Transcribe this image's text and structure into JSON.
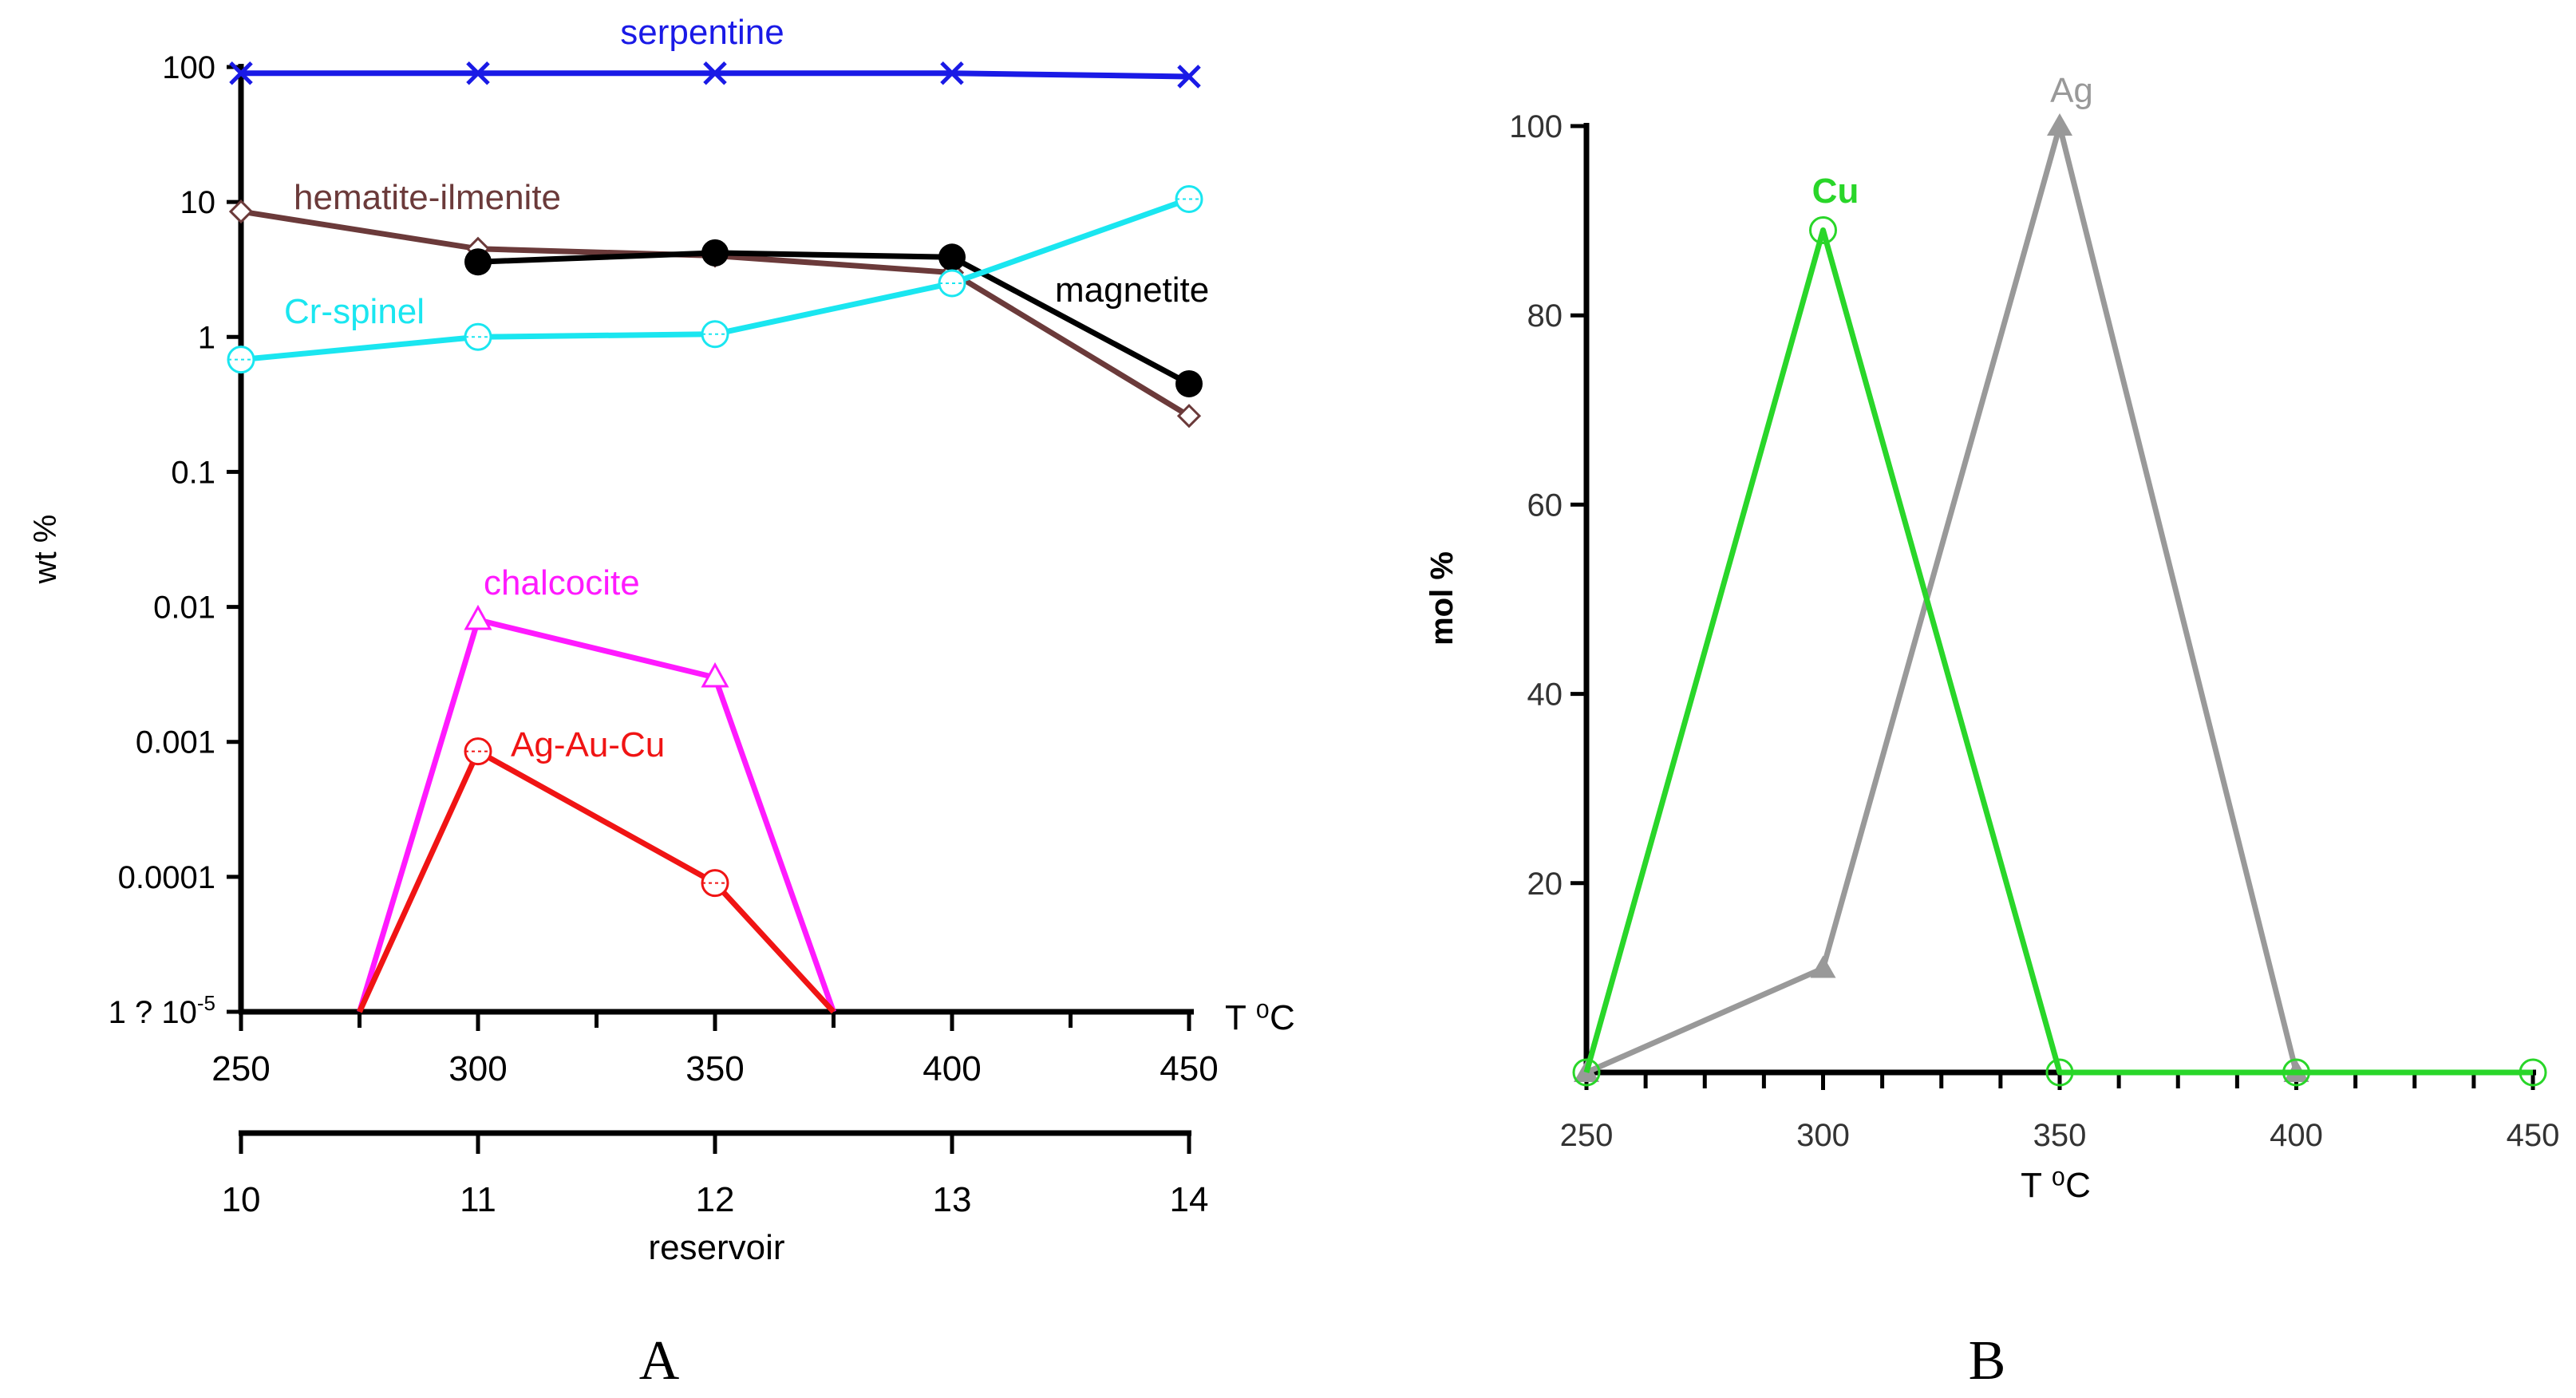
{
  "chart_data": [
    {
      "panel_label": "A",
      "type": "line",
      "yscale": "log",
      "ylabel": "wt %",
      "xlabel": "T ⁰C",
      "x_categories": [
        250,
        300,
        350,
        400,
        450
      ],
      "x_tick_labels": [
        "250",
        "300",
        "350",
        "400",
        "450"
      ],
      "secondary_axis": {
        "label": "reservoir",
        "tick_labels": [
          "10",
          "11",
          "12",
          "13",
          "14"
        ]
      },
      "y_ticks": [
        100,
        10,
        1,
        0.1,
        0.01,
        0.001,
        0.0001,
        1e-05
      ],
      "y_tick_labels": [
        "100",
        "10",
        "1",
        "0.1",
        "0.01",
        "0.001",
        "0.0001",
        "1 ? 10"
      ],
      "y_tick_label_superscript": "-5",
      "ylim": [
        1e-05,
        100
      ],
      "xlim": [
        250,
        450
      ],
      "series": [
        {
          "name": "serpentine",
          "color": "#1a1ae6",
          "marker": "x",
          "x": [
            250,
            300,
            350,
            400,
            450
          ],
          "y": [
            90,
            90,
            90,
            90,
            85
          ]
        },
        {
          "name": "hematite-ilmenite",
          "color": "#6b3a3a",
          "marker": "diamond",
          "x": [
            250,
            300,
            350,
            400,
            450
          ],
          "y": [
            8.5,
            4.5,
            4.0,
            3.0,
            0.26
          ]
        },
        {
          "name": "magnetite",
          "color": "#000000",
          "marker": "filled-circle",
          "x": [
            300,
            350,
            400,
            450
          ],
          "y": [
            3.6,
            4.2,
            3.9,
            0.45
          ]
        },
        {
          "name": "Cr-spinel",
          "color": "#1ae6f0",
          "marker": "circle-dot",
          "x": [
            250,
            300,
            350,
            400,
            450
          ],
          "y": [
            0.68,
            1.0,
            1.05,
            2.5,
            10.5
          ]
        },
        {
          "name": "chalcocite",
          "color": "#ff1aff",
          "marker": "triangle",
          "x": [
            275,
            300,
            350,
            375
          ],
          "y": [
            1e-05,
            0.008,
            0.003,
            1e-05
          ]
        },
        {
          "name": "Ag-Au-Cu",
          "color": "#f01414",
          "marker": "circle-dot",
          "x": [
            275,
            300,
            350,
            375
          ],
          "y": [
            1e-05,
            0.00085,
            9e-05,
            1e-05
          ]
        }
      ]
    },
    {
      "panel_label": "B",
      "type": "line",
      "ylabel": "mol %",
      "xlabel": "T ⁰C",
      "x_tick_labels": [
        "250",
        "300",
        "350",
        "400",
        "450"
      ],
      "y_tick_labels": [
        "20",
        "40",
        "60",
        "80",
        "100"
      ],
      "y_ticks": [
        20,
        40,
        60,
        80,
        100
      ],
      "xlim": [
        250,
        450
      ],
      "ylim": [
        0,
        100
      ],
      "series": [
        {
          "name": "Ag",
          "color": "#999999",
          "marker": "filled-triangle",
          "x": [
            250,
            300,
            350,
            400
          ],
          "y": [
            0,
            11,
            100,
            0
          ]
        },
        {
          "name": "Cu",
          "color": "#29d629",
          "marker": "circle",
          "x": [
            250,
            300,
            350,
            400,
            450
          ],
          "y": [
            0,
            89,
            0,
            0,
            0
          ]
        }
      ]
    }
  ]
}
